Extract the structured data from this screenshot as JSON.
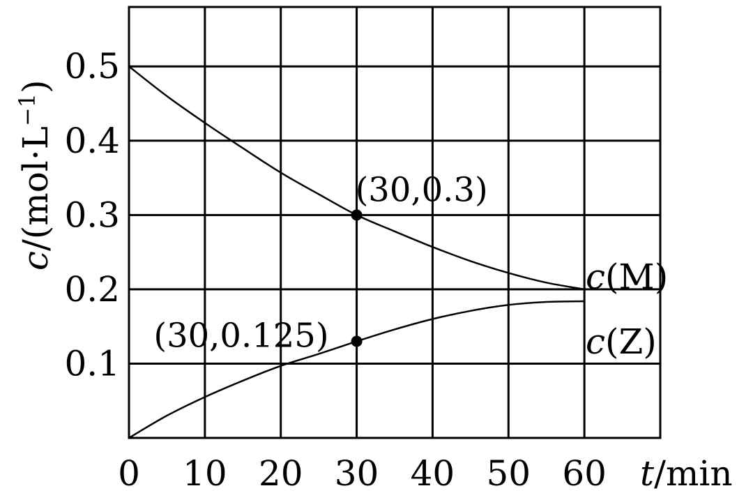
{
  "chart_data": {
    "type": "line",
    "xlabel": {
      "var": "t",
      "unit": "/min"
    },
    "ylabel": {
      "var": "c",
      "unit": "/(mol·L",
      "sup": "−1",
      "close": ")"
    },
    "xlim": [
      0,
      70
    ],
    "ylim": [
      0,
      0.58
    ],
    "x_ticks": [
      0,
      10,
      20,
      30,
      40,
      50,
      60
    ],
    "x_tick_labels": [
      "0",
      "10",
      "20",
      "30",
      "40",
      "50",
      "60"
    ],
    "y_ticks": [
      0.1,
      0.2,
      0.3,
      0.4,
      0.5
    ],
    "y_tick_labels": [
      "0.1",
      "0.2",
      "0.3",
      "0.4",
      "0.5"
    ],
    "grid": true,
    "series": [
      {
        "name": "c(M)",
        "label_var": "c",
        "label_species": "(M)",
        "x": [
          0,
          5,
          10,
          15,
          20,
          25,
          30,
          35,
          40,
          45,
          50,
          55,
          60
        ],
        "y": [
          0.5,
          0.46,
          0.424,
          0.39,
          0.357,
          0.328,
          0.3,
          0.278,
          0.257,
          0.238,
          0.222,
          0.209,
          0.2
        ]
      },
      {
        "name": "c(Z)",
        "label_var": "c",
        "label_species": "(Z)",
        "x": [
          0,
          5,
          10,
          15,
          20,
          25,
          30,
          35,
          40,
          45,
          50,
          55,
          60
        ],
        "y": [
          0.0,
          0.03,
          0.055,
          0.077,
          0.097,
          0.113,
          0.13,
          0.146,
          0.16,
          0.171,
          0.179,
          0.183,
          0.184
        ]
      }
    ],
    "points": [
      {
        "x": 30,
        "y": 0.3,
        "label": "(30,0.3)"
      },
      {
        "x": 30,
        "y": 0.13,
        "label": "(30,0.125)"
      }
    ]
  }
}
